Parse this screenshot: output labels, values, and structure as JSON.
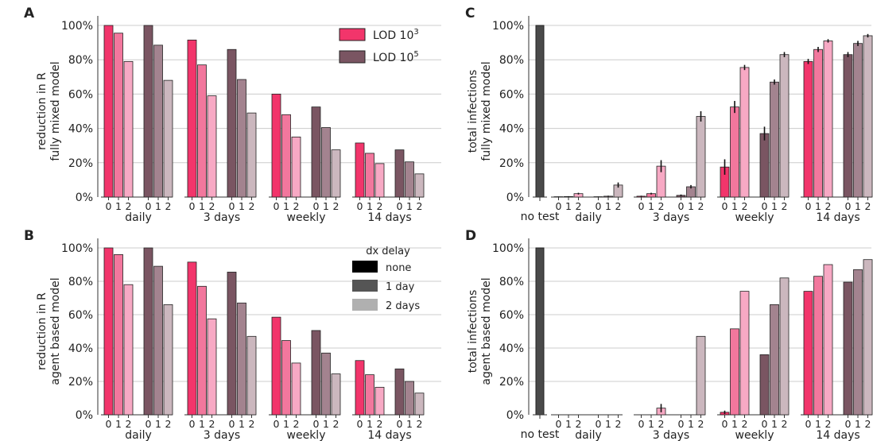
{
  "figure": {
    "categories": [
      "daily",
      "3 days",
      "weekly",
      "14 days"
    ],
    "delays": [
      "0",
      "1",
      "2"
    ],
    "lod_legend": [
      {
        "label": "LOD 10",
        "sup": "3",
        "color": "#f2356b"
      },
      {
        "label": "LOD 10",
        "sup": "5",
        "color": "#7a5562"
      }
    ],
    "delay_legend": {
      "title": "dx delay",
      "items": [
        {
          "label": "none",
          "color": "#000000"
        },
        {
          "label": "1 day",
          "color": "#555555"
        },
        {
          "label": "2 days",
          "color": "#b0b0b0"
        }
      ]
    },
    "colors": {
      "lod3": [
        "#f2356b",
        "#f2779d",
        "#f7a9c4"
      ],
      "lod5": [
        "#7a5562",
        "#a3838f",
        "#cbb7be"
      ],
      "notest": "#4a4a4a",
      "grid": "#cccccc"
    }
  },
  "chart_data": [
    {
      "panel": "A",
      "type": "bar",
      "ylabel": [
        "reduction in R",
        "fully mixed model"
      ],
      "yticks": [
        "0%",
        "20%",
        "40%",
        "60%",
        "80%",
        "100%"
      ],
      "ylim": [
        0,
        100
      ],
      "categories": [
        "daily",
        "3 days",
        "weekly",
        "14 days"
      ],
      "series": [
        {
          "name": "LOD 10^3",
          "values": [
            [
              100,
              95.5,
              79
            ],
            [
              91.5,
              77,
              59
            ],
            [
              60,
              48,
              35
            ],
            [
              31.5,
              25.5,
              19.5
            ]
          ]
        },
        {
          "name": "LOD 10^5",
          "values": [
            [
              100,
              88.5,
              68
            ],
            [
              86,
              68.5,
              49
            ],
            [
              52.5,
              40.5,
              27.5
            ],
            [
              27.5,
              20.5,
              13.5
            ]
          ]
        }
      ]
    },
    {
      "panel": "B",
      "type": "bar",
      "ylabel": [
        "reduction in R",
        "agent based model"
      ],
      "yticks": [
        "0%",
        "20%",
        "40%",
        "60%",
        "80%",
        "100%"
      ],
      "ylim": [
        0,
        100
      ],
      "categories": [
        "daily",
        "3 days",
        "weekly",
        "14 days"
      ],
      "series": [
        {
          "name": "LOD 10^3",
          "values": [
            [
              100,
              96,
              78
            ],
            [
              91.5,
              77,
              57.5
            ],
            [
              58.5,
              44.5,
              31
            ],
            [
              32.5,
              24,
              16.5
            ]
          ]
        },
        {
          "name": "LOD 10^5",
          "values": [
            [
              100,
              89,
              66
            ],
            [
              85.5,
              67,
              47
            ],
            [
              50.5,
              37,
              24.5
            ],
            [
              27.5,
              20,
              13
            ]
          ]
        }
      ]
    },
    {
      "panel": "C",
      "type": "bar",
      "ylabel": [
        "total infections",
        "fully mixed model"
      ],
      "yticks": [
        "0%",
        "20%",
        "40%",
        "60%",
        "80%",
        "100%"
      ],
      "ylim": [
        0,
        100
      ],
      "no_test": {
        "label": "no test",
        "value": 100
      },
      "categories": [
        "daily",
        "3 days",
        "weekly",
        "14 days"
      ],
      "series": [
        {
          "name": "LOD 10^3",
          "values": [
            [
              0.2,
              0.3,
              2
            ],
            [
              0.5,
              2,
              18
            ],
            [
              17.5,
              52.5,
              75.5
            ],
            [
              79,
              86,
              91
            ]
          ],
          "errors": [
            [
              0.1,
              0.2,
              0.5
            ],
            [
              0.3,
              0.5,
              3.5
            ],
            [
              4.5,
              3.5,
              1.5
            ],
            [
              1.5,
              1.5,
              1
            ]
          ]
        },
        {
          "name": "LOD 10^5",
          "values": [
            [
              0.2,
              0.5,
              7
            ],
            [
              1,
              6,
              47
            ],
            [
              37,
              67,
              83
            ],
            [
              83,
              89.5,
              94
            ]
          ],
          "errors": [
            [
              0.1,
              0.3,
              1.5
            ],
            [
              0.5,
              1,
              3
            ],
            [
              4,
              1.5,
              1.5
            ],
            [
              1.5,
              1.5,
              1
            ]
          ]
        }
      ]
    },
    {
      "panel": "D",
      "type": "bar",
      "ylabel": [
        "total infections",
        "agent based model"
      ],
      "yticks": [
        "0%",
        "20%",
        "40%",
        "60%",
        "80%",
        "100%"
      ],
      "ylim": [
        0,
        100
      ],
      "no_test": {
        "label": "no test",
        "value": 100
      },
      "categories": [
        "daily",
        "3 days",
        "weekly",
        "14 days"
      ],
      "series": [
        {
          "name": "LOD 10^3",
          "values": [
            [
              0,
              0,
              0
            ],
            [
              0,
              0,
              4
            ],
            [
              1.5,
              51.5,
              74
            ],
            [
              74,
              83,
              90
            ]
          ],
          "errors": [
            [
              0,
              0,
              0
            ],
            [
              0,
              0,
              2.5
            ],
            [
              1,
              0,
              0
            ],
            [
              0,
              0,
              0
            ]
          ]
        },
        {
          "name": "LOD 10^5",
          "values": [
            [
              0,
              0,
              0
            ],
            [
              0,
              0,
              47
            ],
            [
              36,
              66,
              82
            ],
            [
              79.5,
              87,
              93
            ]
          ],
          "errors": [
            [
              0,
              0,
              0
            ],
            [
              0,
              0,
              0
            ],
            [
              0,
              0,
              0
            ],
            [
              0,
              0,
              0
            ]
          ]
        }
      ]
    }
  ]
}
